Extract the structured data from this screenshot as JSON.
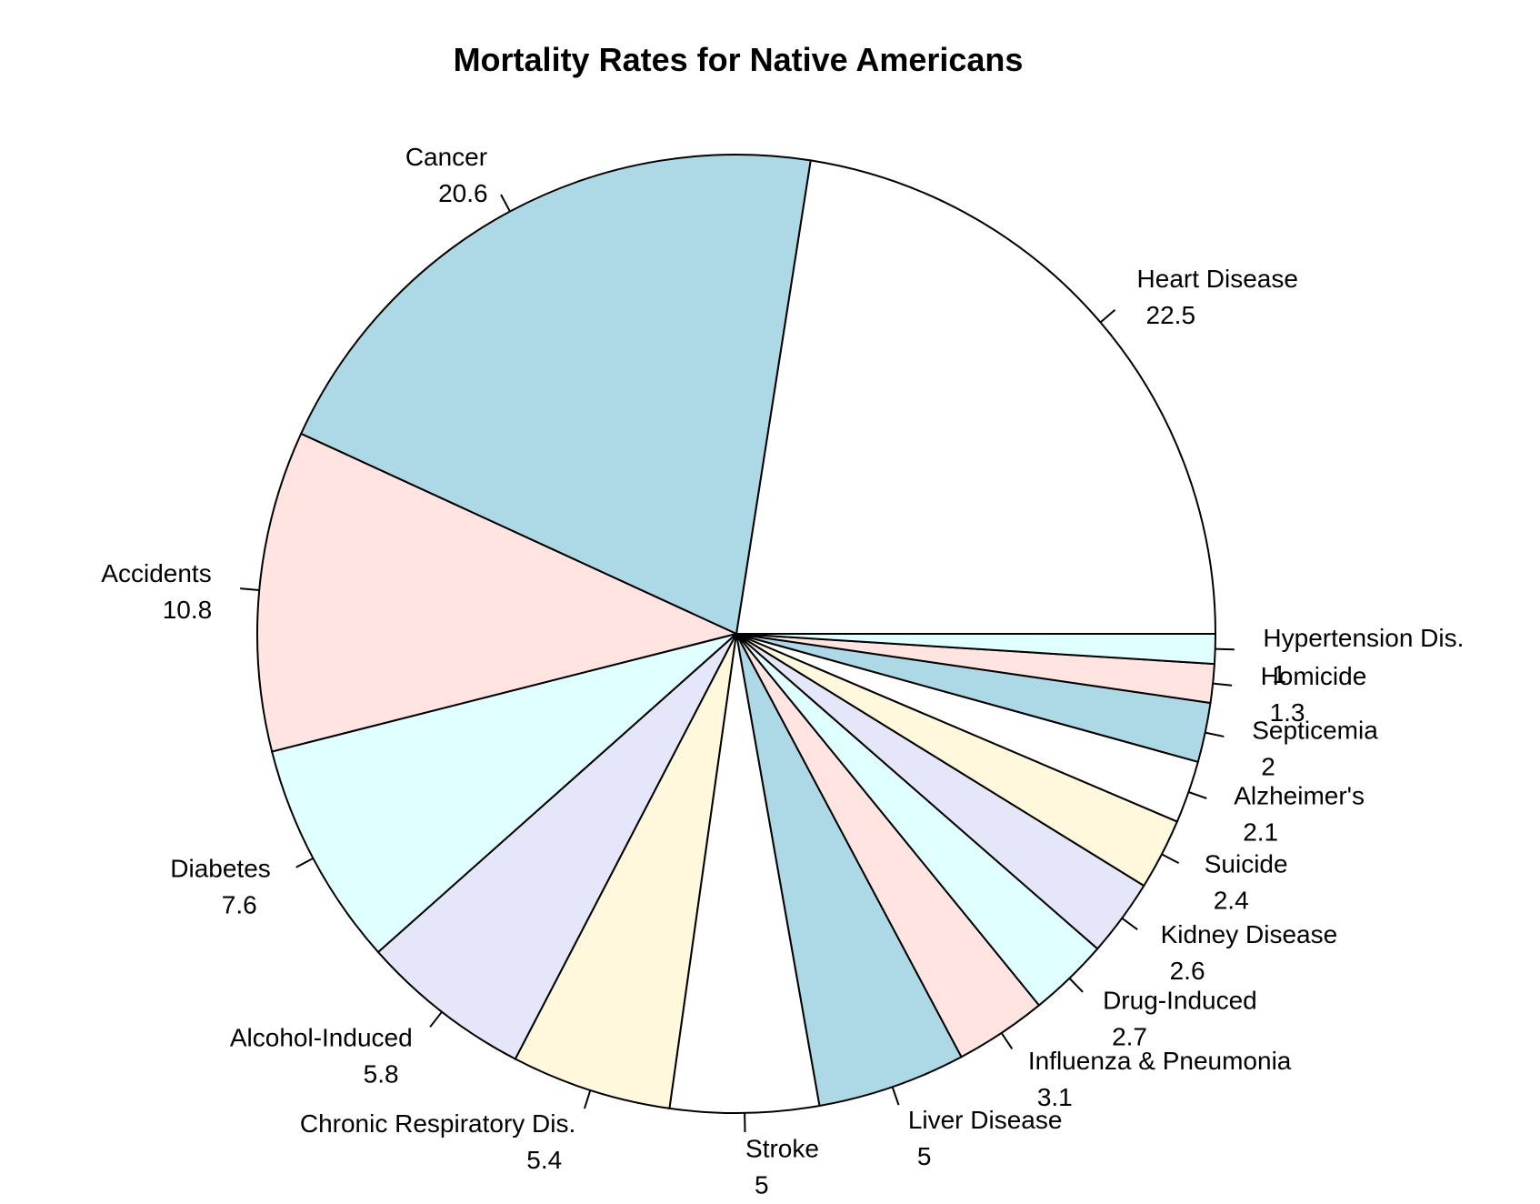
{
  "chart_data": {
    "type": "pie",
    "title": "Mortality Rates for Native Americans",
    "slices": [
      {
        "label": "Heart Disease",
        "value_label": "22.5",
        "value": 22.5,
        "color": "#ffffff"
      },
      {
        "label": "Cancer",
        "value_label": "20.6",
        "value": 20.6,
        "color": "#add8e6"
      },
      {
        "label": "Accidents",
        "value_label": "10.8",
        "value": 10.8,
        "color": "#ffe4e1"
      },
      {
        "label": "Diabetes",
        "value_label": "7.6",
        "value": 7.6,
        "color": "#e0ffff"
      },
      {
        "label": "Alcohol-Induced",
        "value_label": "5.8",
        "value": 5.8,
        "color": "#e6e6fa"
      },
      {
        "label": "Chronic Respiratory Dis.",
        "value_label": "5.4",
        "value": 5.4,
        "color": "#fff8dc"
      },
      {
        "label": "Stroke",
        "value_label": "5",
        "value": 5,
        "color": "#ffffff"
      },
      {
        "label": "Liver Disease",
        "value_label": "5",
        "value": 5,
        "color": "#add8e6"
      },
      {
        "label": "Influenza & Pneumonia",
        "value_label": "3.1",
        "value": 3.1,
        "color": "#ffe4e1"
      },
      {
        "label": "Drug-Induced",
        "value_label": "2.7",
        "value": 2.7,
        "color": "#e0ffff"
      },
      {
        "label": "Kidney Disease",
        "value_label": "2.6",
        "value": 2.6,
        "color": "#e6e6fa"
      },
      {
        "label": "Suicide",
        "value_label": "2.4",
        "value": 2.4,
        "color": "#fff8dc"
      },
      {
        "label": "Alzheimer's",
        "value_label": "2.1",
        "value": 2.1,
        "color": "#ffffff"
      },
      {
        "label": "Septicemia",
        "value_label": "2",
        "value": 2,
        "color": "#add8e6"
      },
      {
        "label": "Homicide",
        "value_label": "1.3",
        "value": 1.3,
        "color": "#ffe4e1"
      },
      {
        "label": "Hypertension Dis.",
        "value_label": "1",
        "value": 1,
        "color": "#e0ffff"
      }
    ],
    "start_angle_deg": 0,
    "direction": "counterclockwise"
  }
}
